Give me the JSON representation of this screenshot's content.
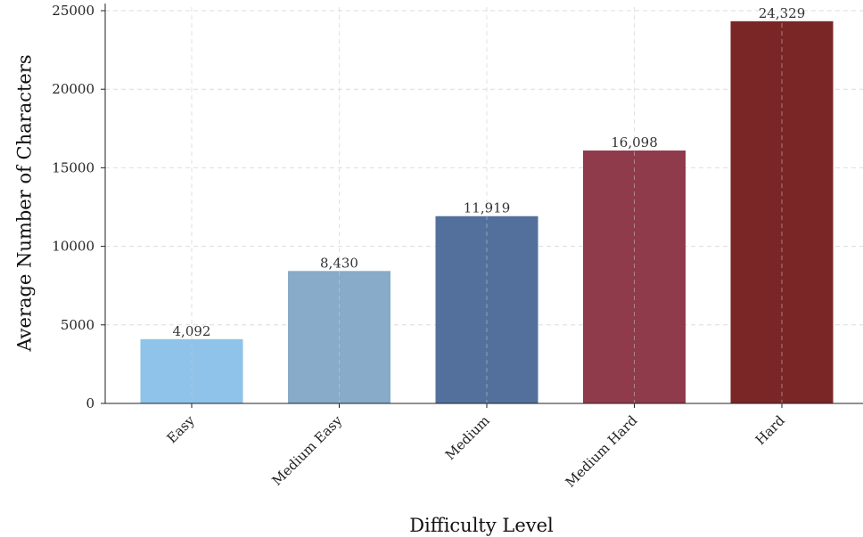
{
  "chart_data": {
    "type": "bar",
    "title": "",
    "xlabel": "Difficulty Level",
    "ylabel": "Average Number of Characters",
    "categories": [
      "Easy",
      "Medium Easy",
      "Medium",
      "Medium Hard",
      "Hard"
    ],
    "values": [
      4092,
      8430,
      11919,
      16098,
      24329
    ],
    "value_labels": [
      "4,092",
      "8,430",
      "11,919",
      "16,098",
      "24,329"
    ],
    "colors": [
      "#8fc3ea",
      "#87abc9",
      "#52709b",
      "#8f3b4b",
      "#7a2626"
    ],
    "ylim": [
      0,
      25000
    ],
    "yticks": [
      0,
      5000,
      10000,
      15000,
      20000,
      25000
    ],
    "ytick_labels": [
      "0",
      "5000",
      "10000",
      "15000",
      "20000",
      "25000"
    ],
    "grid": true,
    "legend": "none"
  }
}
